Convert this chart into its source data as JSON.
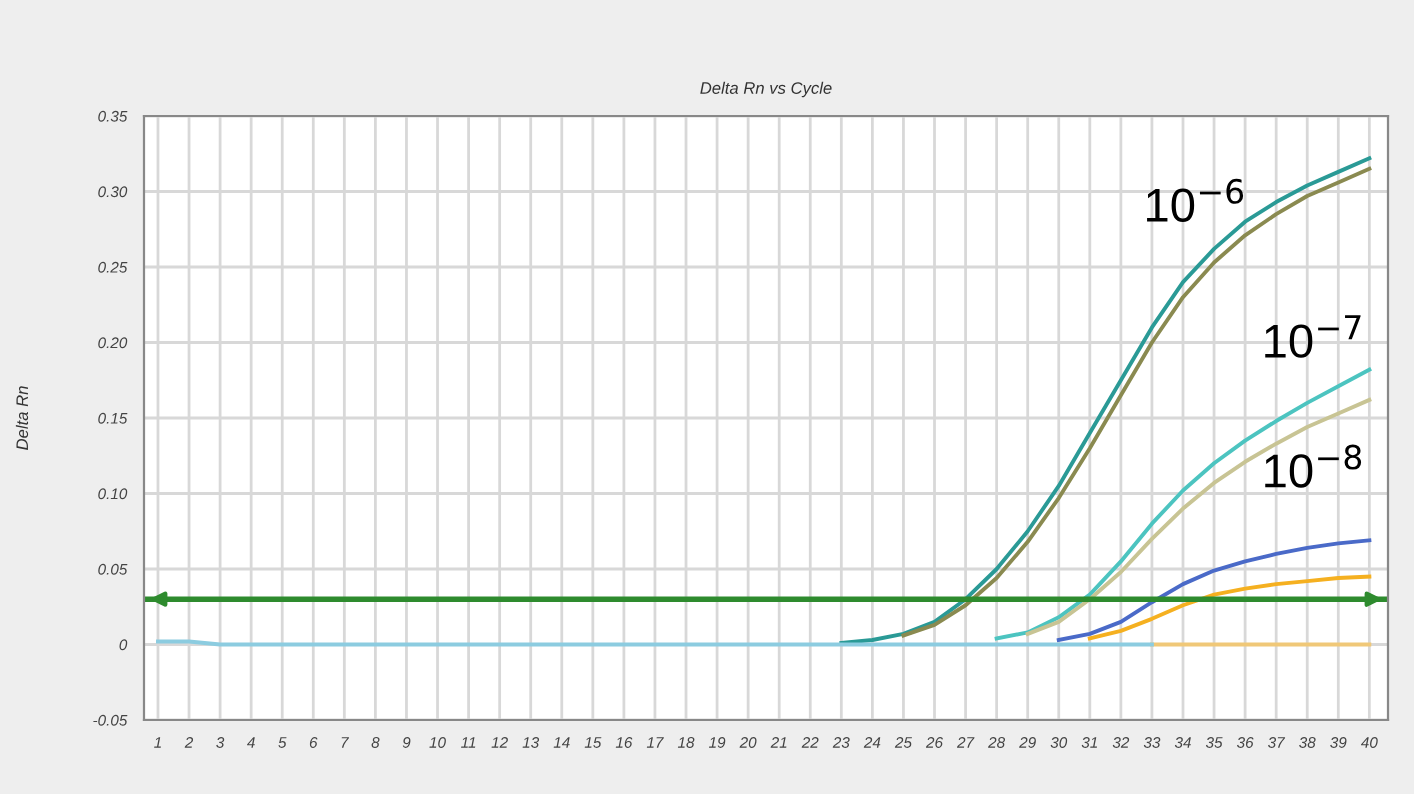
{
  "chart_data": {
    "type": "line",
    "title": "Delta Rn vs Cycle",
    "ylabel": "Delta Rn",
    "x": [
      1,
      2,
      3,
      4,
      5,
      6,
      7,
      8,
      9,
      10,
      11,
      12,
      13,
      14,
      15,
      16,
      17,
      18,
      19,
      20,
      21,
      22,
      23,
      24,
      25,
      26,
      27,
      28,
      29,
      30,
      31,
      32,
      33,
      34,
      35,
      36,
      37,
      38,
      39,
      40
    ],
    "series": [
      {
        "color": "#2a9a96",
        "values": [
          null,
          null,
          null,
          null,
          null,
          null,
          null,
          null,
          null,
          null,
          null,
          null,
          null,
          null,
          null,
          null,
          null,
          null,
          null,
          null,
          null,
          null,
          0.001,
          0.003,
          0.007,
          0.015,
          0.03,
          0.05,
          0.075,
          0.105,
          0.14,
          0.175,
          0.21,
          0.24,
          0.262,
          0.28,
          0.293,
          0.304,
          0.313,
          0.322
        ]
      },
      {
        "color": "#8a8a50",
        "values": [
          null,
          null,
          null,
          null,
          null,
          null,
          null,
          null,
          null,
          null,
          null,
          null,
          null,
          null,
          null,
          null,
          null,
          null,
          null,
          null,
          null,
          null,
          null,
          null,
          0.006,
          0.013,
          0.026,
          0.044,
          0.068,
          0.097,
          0.13,
          0.165,
          0.2,
          0.23,
          0.253,
          0.271,
          0.285,
          0.297,
          0.306,
          0.315
        ]
      },
      {
        "color": "#4cc4c0",
        "values": [
          null,
          null,
          null,
          null,
          null,
          null,
          null,
          null,
          null,
          null,
          null,
          null,
          null,
          null,
          null,
          null,
          null,
          null,
          null,
          null,
          null,
          null,
          null,
          null,
          null,
          null,
          null,
          0.004,
          0.008,
          0.018,
          0.033,
          0.055,
          0.08,
          0.102,
          0.12,
          0.135,
          0.148,
          0.16,
          0.171,
          0.182
        ]
      },
      {
        "color": "#c8c494",
        "values": [
          null,
          null,
          null,
          null,
          null,
          null,
          null,
          null,
          null,
          null,
          null,
          null,
          null,
          null,
          null,
          null,
          null,
          null,
          null,
          null,
          null,
          null,
          null,
          null,
          null,
          null,
          null,
          null,
          0.007,
          0.015,
          0.03,
          0.048,
          0.07,
          0.09,
          0.107,
          0.121,
          0.133,
          0.144,
          0.153,
          0.162
        ]
      },
      {
        "color": "#4a6ac8",
        "values": [
          null,
          null,
          null,
          null,
          null,
          null,
          null,
          null,
          null,
          null,
          null,
          null,
          null,
          null,
          null,
          null,
          null,
          null,
          null,
          null,
          null,
          null,
          null,
          null,
          null,
          null,
          null,
          null,
          null,
          0.003,
          0.007,
          0.015,
          0.028,
          0.04,
          0.049,
          0.055,
          0.06,
          0.064,
          0.067,
          0.069
        ]
      },
      {
        "color": "#f5b020",
        "values": [
          null,
          null,
          null,
          null,
          null,
          null,
          null,
          null,
          null,
          null,
          null,
          null,
          null,
          null,
          null,
          null,
          null,
          null,
          null,
          null,
          null,
          null,
          null,
          null,
          null,
          null,
          null,
          null,
          null,
          null,
          0.004,
          0.009,
          0.017,
          0.026,
          0.033,
          0.037,
          0.04,
          0.042,
          0.044,
          0.045
        ]
      },
      {
        "color": "#f0c878",
        "values": [
          null,
          null,
          null,
          null,
          null,
          null,
          null,
          null,
          null,
          null,
          null,
          null,
          null,
          null,
          null,
          null,
          null,
          null,
          null,
          null,
          null,
          null,
          null,
          null,
          null,
          null,
          null,
          null,
          null,
          null,
          null,
          null,
          0,
          0,
          0,
          0,
          0,
          0,
          0,
          0
        ]
      },
      {
        "color": "#8ccce0",
        "values": [
          0.002,
          0.002,
          0,
          0,
          0,
          0,
          0,
          0,
          0,
          0,
          0,
          0,
          0,
          0,
          0,
          0,
          0,
          0,
          0,
          0,
          0,
          0,
          0,
          0,
          0,
          0,
          0,
          0,
          0,
          0,
          0,
          0,
          0,
          null,
          null,
          null,
          null,
          null,
          null,
          null
        ]
      }
    ],
    "xlim": [
      0.55,
      40.6
    ],
    "xticks": [
      1,
      2,
      3,
      4,
      5,
      6,
      7,
      8,
      9,
      10,
      11,
      12,
      13,
      14,
      15,
      16,
      17,
      18,
      19,
      20,
      21,
      22,
      23,
      24,
      25,
      26,
      27,
      28,
      29,
      30,
      31,
      32,
      33,
      34,
      35,
      36,
      37,
      38,
      39,
      40
    ],
    "ylim": [
      -0.05,
      0.35
    ],
    "yticks": [
      {
        "value": -0.05,
        "label": "-0.05"
      },
      0,
      {
        "value": 0.05,
        "label": "0.05"
      },
      {
        "value": 0.1,
        "label": "0.10"
      },
      {
        "value": 0.15,
        "label": "0.15"
      },
      {
        "value": 0.2,
        "label": "0.20"
      },
      {
        "value": 0.25,
        "label": "0.25"
      },
      {
        "value": 0.3,
        "label": "0.30"
      },
      {
        "value": 0.35,
        "label": "0.35"
      }
    ],
    "ref_lines": [
      {
        "axis": "y",
        "value": 0.03,
        "color": "#2e8b2e"
      }
    ],
    "annotations": [
      "10$^{−6}$",
      "10$^{−7}$",
      "10$^{−8}$"
    ],
    "grid": true,
    "legend": false
  }
}
